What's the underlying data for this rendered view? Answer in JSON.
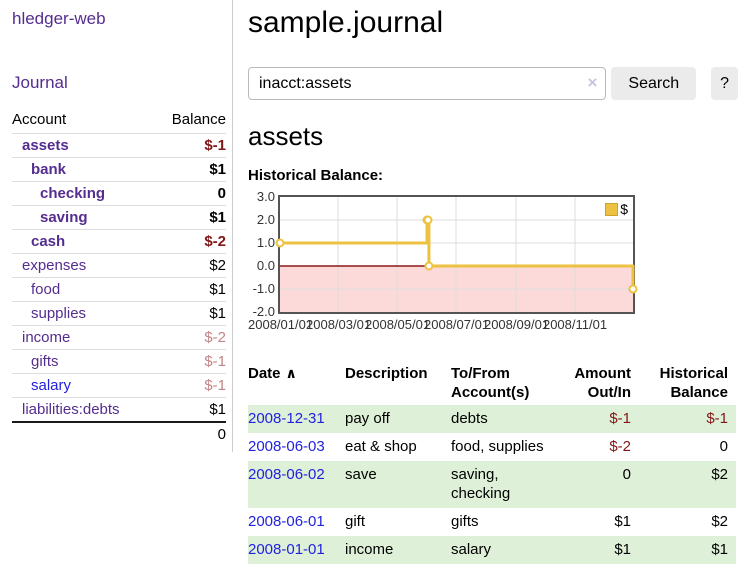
{
  "app": {
    "title": "hledger-web"
  },
  "colors": {
    "link_purple": "#542d8f",
    "link_blue": "#2222dd",
    "negative_dark": "#801717",
    "negative_light": "#c08585",
    "row_stripe_green": "#dff0d8",
    "button_bg": "#ebebeb",
    "chart_line": "#edc240"
  },
  "icons": {
    "sort_ascending": "∧",
    "clear_search": "×"
  },
  "sidebar": {
    "journal_link": "Journal",
    "accounts_table": {
      "headers": {
        "account": "Account",
        "balance": "Balance"
      },
      "rows": [
        {
          "name": "assets",
          "balance": "$-1",
          "indent": 0,
          "bold": true,
          "neg": "dark",
          "link": "purple"
        },
        {
          "name": "bank",
          "balance": "$1",
          "indent": 1,
          "bold": true,
          "neg": null,
          "link": "purple"
        },
        {
          "name": "checking",
          "balance": "0",
          "indent": 2,
          "bold": true,
          "neg": null,
          "link": "purple"
        },
        {
          "name": "saving",
          "balance": "$1",
          "indent": 2,
          "bold": true,
          "neg": null,
          "link": "purple"
        },
        {
          "name": "cash",
          "balance": "$-2",
          "indent": 1,
          "bold": true,
          "neg": "dark",
          "link": "purple"
        },
        {
          "name": "expenses",
          "balance": "$2",
          "indent": 0,
          "bold": false,
          "neg": null,
          "link": "purple"
        },
        {
          "name": "food",
          "balance": "$1",
          "indent": 1,
          "bold": false,
          "neg": null,
          "link": "purple"
        },
        {
          "name": "supplies",
          "balance": "$1",
          "indent": 1,
          "bold": false,
          "neg": null,
          "link": "purple"
        },
        {
          "name": "income",
          "balance": "$-2",
          "indent": 0,
          "bold": false,
          "neg": "light",
          "link": "purple"
        },
        {
          "name": "gifts",
          "balance": "$-1",
          "indent": 1,
          "bold": false,
          "neg": "light",
          "link": "purple"
        },
        {
          "name": "salary",
          "balance": "$-1",
          "indent": 1,
          "bold": false,
          "neg": "light",
          "link": "blue"
        },
        {
          "name": "liabilities:debts",
          "balance": "$1",
          "indent": 0,
          "bold": false,
          "neg": null,
          "link": "purple"
        }
      ],
      "total": "0"
    }
  },
  "main": {
    "title": "sample.journal",
    "search": {
      "value": "inacct:assets",
      "button": "Search",
      "help_button": "?"
    },
    "account_heading": "assets"
  },
  "chart_data": {
    "type": "line",
    "style": "step",
    "title": "Historical Balance:",
    "series": [
      {
        "name": "$",
        "color": "#edc240",
        "points": [
          {
            "x": "2008/01/01",
            "y": 1
          },
          {
            "x": "2008/06/01",
            "y": 2
          },
          {
            "x": "2008/06/02",
            "y": 2
          },
          {
            "x": "2008/06/03",
            "y": 0
          },
          {
            "x": "2008/12/31",
            "y": -1
          }
        ]
      }
    ],
    "x_range": [
      "2008/01/01",
      "2008/12/31"
    ],
    "ylim": [
      -2,
      3
    ],
    "y_ticks": [
      "3.0",
      "2.0",
      "1.0",
      "0.0",
      "-1.0",
      "-2.0"
    ],
    "x_ticks": [
      "2008/01/01",
      "2008/03/01",
      "2008/05/01",
      "2008/07/01",
      "2008/09/01",
      "2008/11/01"
    ],
    "grid": true,
    "grid_color": "#dddddd",
    "negative_region_color": "#fcdada",
    "zero_line_color": "#8b1a1a",
    "legend": {
      "label": "$",
      "swatch_color": "#edc240",
      "position": "top-right"
    }
  },
  "register_table": {
    "columns": [
      {
        "label": "Date",
        "align": "left",
        "sorted": "asc"
      },
      {
        "label": "Description",
        "align": "left"
      },
      {
        "label": "To/From Account(s)",
        "align": "left"
      },
      {
        "label": "Amount Out/In",
        "align": "right"
      },
      {
        "label": "Historical Balance",
        "align": "right"
      }
    ],
    "rows": [
      {
        "date": "2008-12-31",
        "description": "pay off",
        "accounts": "debts",
        "amount": "$-1",
        "amount_negative": true,
        "balance": "$-1",
        "balance_negative": true
      },
      {
        "date": "2008-06-03",
        "description": "eat & shop",
        "accounts": "food, supplies",
        "amount": "$-2",
        "amount_negative": true,
        "balance": "0",
        "balance_negative": false
      },
      {
        "date": "2008-06-02",
        "description": "save",
        "accounts": "saving, checking",
        "amount": "0",
        "amount_negative": false,
        "balance": "$2",
        "balance_negative": false
      },
      {
        "date": "2008-06-01",
        "description": "gift",
        "accounts": "gifts",
        "amount": "$1",
        "amount_negative": false,
        "balance": "$2",
        "balance_negative": false
      },
      {
        "date": "2008-01-01",
        "description": "income",
        "accounts": "salary",
        "amount": "$1",
        "amount_negative": false,
        "balance": "$1",
        "balance_negative": false
      }
    ]
  }
}
